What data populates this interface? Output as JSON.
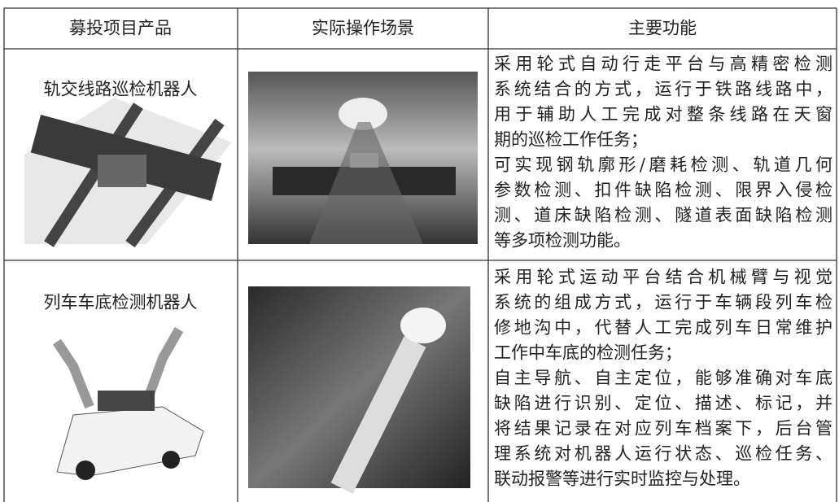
{
  "table": {
    "header": [
      "募投项目产品",
      "实际操作场景",
      "主要功能"
    ],
    "rows": [
      {
        "name": "轨交线路巡检机器人",
        "function": [
          "采用轮式自动行走平台与高精密检测",
          "系统结合的方式，运行于铁路线路中，",
          "用于辅助人工完成对整条线路在天窗",
          "期的巡检工作任务；",
          "可实现钢轨廓形/磨耗检测、轨道几何",
          "参数检测、扣件缺陷检测、限界入侵检",
          "测、道床缺陷检测、隧道表面缺陷检测",
          "等多项检测功能。"
        ]
      },
      {
        "name": "列车车底检测机器人",
        "function": [
          "采用轮式运动平台结合机械臂与视觉",
          "系统的组成方式，运行于车辆段列车检",
          "修地沟中，代替人工完成列车日常维护",
          "工作中车底的检测任务；",
          "自主导航、自主定位，能够准确对车底",
          "缺陷进行识别、定位、描述、标记，并",
          "将结果记录在对应列车档案下，后台管",
          "理系统对机器人运行状态、巡检任务、",
          "联动报警等进行实时监控与处理。"
        ]
      }
    ]
  }
}
